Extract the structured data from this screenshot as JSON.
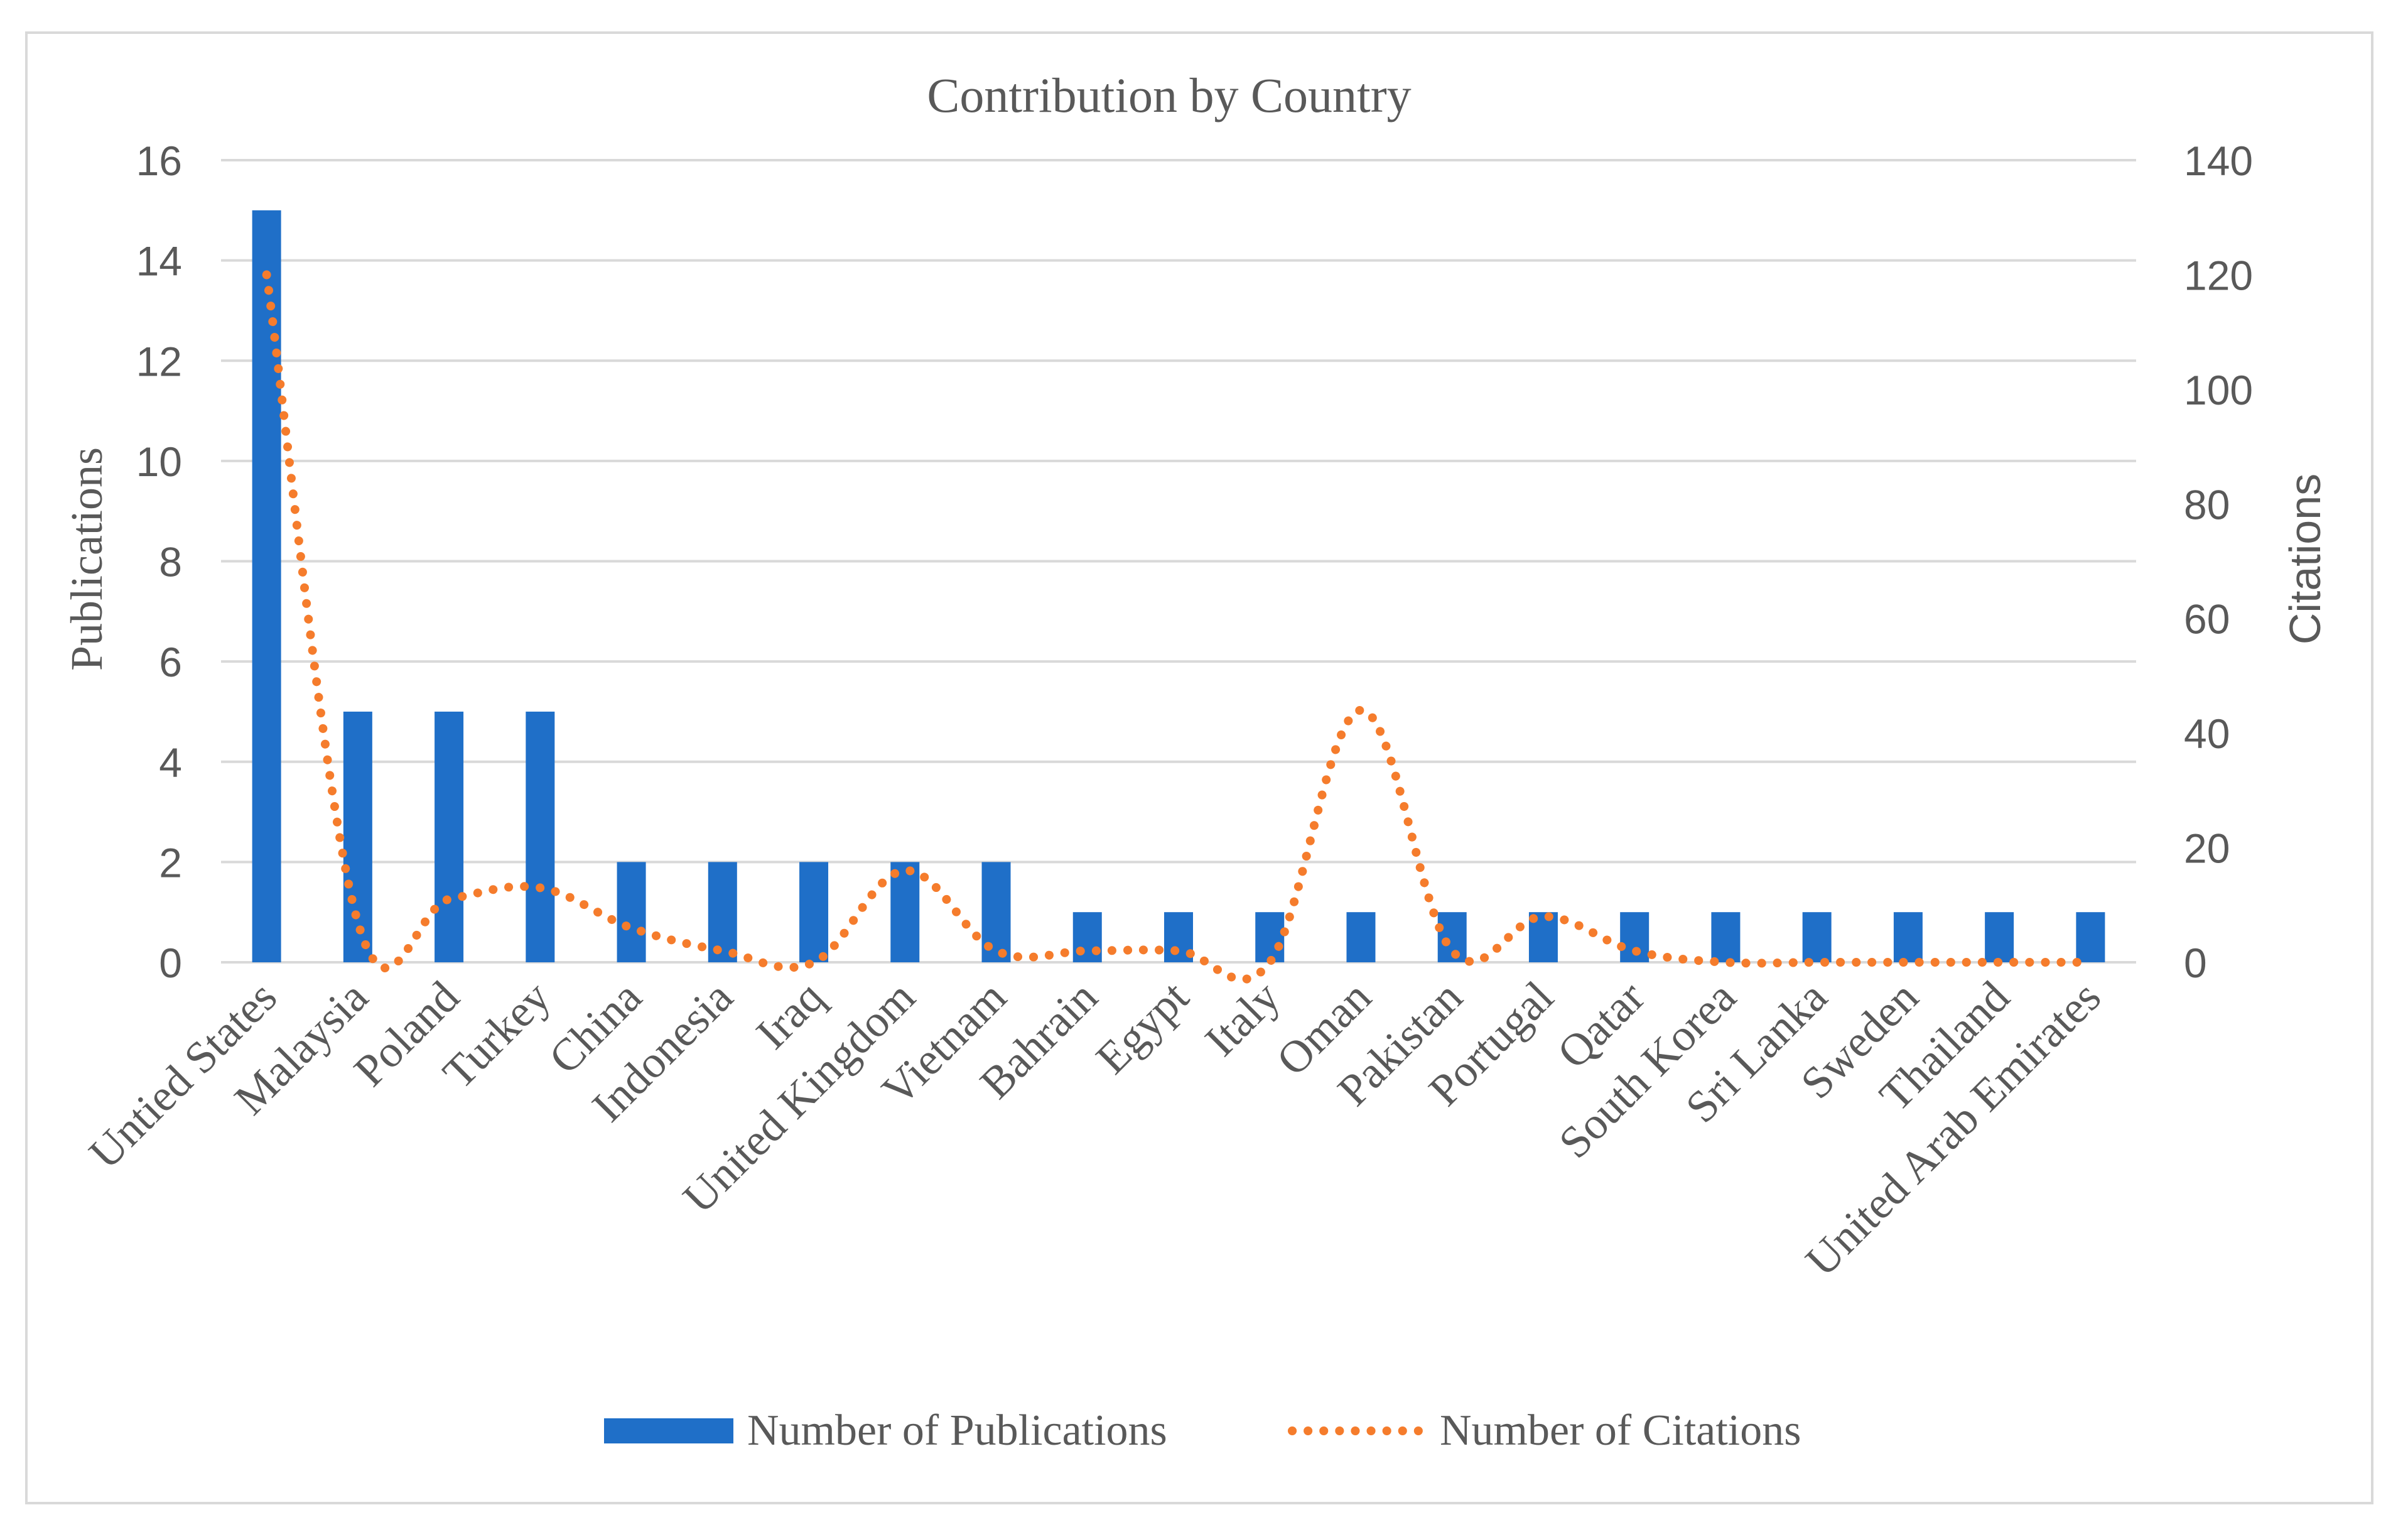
{
  "chart_data": {
    "type": "bar",
    "title": "Contribution by Country",
    "categories": [
      "Untied States",
      "Malaysia",
      "Poland",
      "Turkey",
      "China",
      "Indonesia",
      "Iraq",
      "United Kingdom",
      "Vietnam",
      "Bahrain",
      "Egypt",
      "Italy",
      "Oman",
      "Pakistan",
      "Portugal",
      "Qatar",
      "South Korea",
      "Sri Lanka",
      "Sweden",
      "Thailand",
      "United Arab Emirates"
    ],
    "series": [
      {
        "name": "Number of Publications",
        "type": "bar",
        "axis": "left",
        "color": "#1f6fc8",
        "values": [
          15,
          5,
          5,
          5,
          2,
          2,
          2,
          2,
          2,
          1,
          1,
          1,
          1,
          1,
          1,
          1,
          1,
          1,
          1,
          1,
          1
        ]
      },
      {
        "name": "Number of Citations",
        "type": "line",
        "style": "dotted",
        "axis": "right",
        "color": "#f57c2c",
        "values": [
          120,
          7,
          11,
          13,
          6,
          2,
          0,
          16,
          2,
          2,
          2,
          0,
          44,
          2,
          8,
          2,
          0,
          0,
          0,
          0,
          0
        ]
      }
    ],
    "ylabel": "Publications",
    "y2label": "Citations",
    "ylim": [
      0,
      16
    ],
    "y2lim": [
      0,
      140
    ],
    "yticks": [
      "0",
      "2",
      "4",
      "6",
      "8",
      "10",
      "12",
      "14",
      "16"
    ],
    "y2ticks": [
      "0",
      "20",
      "40",
      "60",
      "80",
      "100",
      "120",
      "140"
    ],
    "grid": true,
    "legend_position": "bottom"
  }
}
